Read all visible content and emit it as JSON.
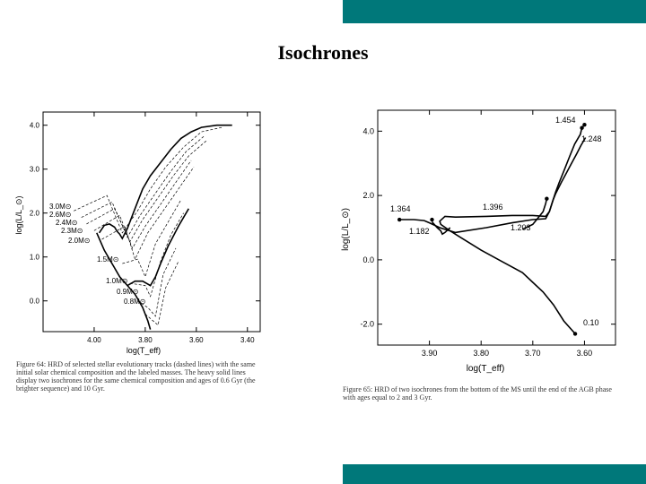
{
  "slide": {
    "title": "Isochrones"
  },
  "colors": {
    "accent": "#00787a"
  },
  "chart_data": [
    {
      "type": "line",
      "title": "",
      "xlabel": "log(T_eff)",
      "ylabel": "log(L/L_⊙)",
      "xlim": [
        4.2,
        3.35
      ],
      "ylim": [
        -0.7,
        4.3
      ],
      "x_ticks": [
        "4.00",
        "3.80",
        "3.60",
        "3.40"
      ],
      "y_ticks": [
        "0.0",
        "1.0",
        "2.0",
        "3.0",
        "4.0"
      ],
      "annotations": [
        "3.0M⊙",
        "2.6M⊙",
        "2.4M⊙",
        "2.3M⊙",
        "2.0M⊙",
        "1.5M⊙",
        "1.0M⊙",
        "0.9M⊙",
        "0.8M⊙"
      ],
      "caption": "Figure 64: HRD of selected stellar evolutionary tracks (dashed lines) with the same initial solar chemical composition and the labeled masses. The heavy solid lines display two isochrones for the same chemical composition and ages of 0.6 Gyr (the brighter sequence) and 10 Gyr.",
      "series": [
        {
          "style": "dashed",
          "x": [
            4.08,
            3.95,
            3.89,
            3.83,
            3.78,
            3.72,
            3.65,
            3.58,
            3.5
          ],
          "y": [
            2.05,
            2.4,
            1.55,
            2.05,
            2.55,
            3.05,
            3.5,
            3.85,
            3.95
          ]
        },
        {
          "style": "dashed",
          "x": [
            4.05,
            3.93,
            3.87,
            3.82,
            3.76,
            3.7,
            3.64,
            3.57
          ],
          "y": [
            1.9,
            2.25,
            1.45,
            1.95,
            2.45,
            2.95,
            3.4,
            3.75
          ]
        },
        {
          "style": "dashed",
          "x": [
            4.03,
            3.92,
            3.86,
            3.81,
            3.75,
            3.69,
            3.63,
            3.56
          ],
          "y": [
            1.75,
            2.1,
            1.35,
            1.85,
            2.35,
            2.85,
            3.3,
            3.65
          ]
        },
        {
          "style": "dashed",
          "x": [
            4.0,
            3.9,
            3.85,
            3.8,
            3.74,
            3.68,
            3.62
          ],
          "y": [
            1.6,
            1.95,
            1.2,
            1.7,
            2.2,
            2.7,
            3.2
          ]
        },
        {
          "style": "dashed",
          "x": [
            3.97,
            3.88,
            3.84,
            3.79,
            3.73,
            3.67,
            3.61
          ],
          "y": [
            1.4,
            1.7,
            0.95,
            1.55,
            2.05,
            2.55,
            3.05
          ]
        },
        {
          "style": "dashed",
          "x": [
            3.89,
            3.83,
            3.8,
            3.76,
            3.71,
            3.66
          ],
          "y": [
            0.85,
            0.95,
            0.55,
            1.3,
            1.8,
            2.3
          ]
        },
        {
          "style": "dashed",
          "x": [
            3.86,
            3.8,
            3.78,
            3.74,
            3.7,
            3.65
          ],
          "y": [
            0.4,
            0.35,
            0.1,
            0.9,
            1.5,
            2.0
          ]
        },
        {
          "style": "dashed",
          "x": [
            3.83,
            3.79,
            3.76,
            3.73,
            3.68
          ],
          "y": [
            0.0,
            -0.15,
            -0.35,
            0.6,
            1.2
          ]
        },
        {
          "style": "dashed",
          "x": [
            3.8,
            3.77,
            3.75,
            3.72,
            3.67
          ],
          "y": [
            -0.3,
            -0.45,
            -0.55,
            0.3,
            0.9
          ]
        },
        {
          "style": "solid",
          "x": [
            3.98,
            3.96,
            3.94,
            3.92,
            3.91,
            3.9,
            3.89,
            3.87,
            3.85,
            3.83,
            3.81,
            3.78,
            3.74,
            3.7,
            3.66,
            3.62,
            3.58,
            3.52,
            3.46
          ],
          "y": [
            1.55,
            1.72,
            1.75,
            1.68,
            1.58,
            1.52,
            1.42,
            1.65,
            1.95,
            2.25,
            2.55,
            2.85,
            3.15,
            3.45,
            3.7,
            3.85,
            3.95,
            4.0,
            4.0
          ]
        },
        {
          "style": "solid",
          "x": [
            3.78,
            3.79,
            3.81,
            3.84,
            3.87,
            3.9,
            3.93,
            3.96,
            3.99
          ],
          "y": [
            -0.65,
            -0.45,
            -0.15,
            0.15,
            0.35,
            0.55,
            0.85,
            1.15,
            1.55
          ]
        },
        {
          "style": "solid",
          "x": [
            3.87,
            3.84,
            3.81,
            3.78,
            3.76,
            3.74,
            3.71,
            3.67,
            3.63
          ],
          "y": [
            0.35,
            0.45,
            0.45,
            0.35,
            0.55,
            0.85,
            1.25,
            1.7,
            2.1
          ]
        }
      ]
    },
    {
      "type": "line",
      "title": "",
      "xlabel": "log(T_eff)",
      "ylabel": "log(L/L_⊙)",
      "xlim": [
        4.0,
        3.54
      ],
      "ylim": [
        -2.65,
        4.65
      ],
      "x_ticks": [
        "3.90",
        "3.80",
        "3.70",
        "3.60"
      ],
      "y_ticks": [
        "-2.0",
        "0.0",
        "2.0",
        "4.0"
      ],
      "annotations": [
        "1.454",
        "1.248",
        "1.364",
        "1.396",
        "1.182",
        "1.203",
        "0.10"
      ],
      "caption": "Figure 65: HRD of two isochrones from the bottom of the MS until the end of the AGB phase with ages equal to 2 and 3 Gyr.",
      "series": [
        {
          "style": "solid",
          "x": [
            3.618,
            3.64,
            3.66,
            3.68,
            3.7,
            3.72,
            3.76,
            3.8,
            3.84,
            3.86,
            3.878,
            3.88,
            3.87,
            3.85,
            3.79,
            3.74,
            3.7,
            3.675,
            3.668,
            3.661,
            3.656,
            3.649,
            3.639,
            3.629,
            3.619,
            3.608,
            3.605,
            3.6
          ],
          "y": [
            -2.3,
            -1.9,
            -1.4,
            -1.0,
            -0.7,
            -0.4,
            -0.05,
            0.3,
            0.7,
            0.9,
            1.1,
            1.2,
            1.35,
            1.33,
            1.35,
            1.38,
            1.38,
            1.35,
            1.5,
            1.85,
            2.1,
            2.4,
            2.8,
            3.2,
            3.6,
            3.9,
            4.1,
            4.2
          ]
        },
        {
          "style": "solid",
          "x": [
            3.958,
            3.93,
            3.91,
            3.9,
            3.88,
            3.85,
            3.79,
            3.74,
            3.7,
            3.675,
            3.668,
            3.661,
            3.656,
            3.645,
            3.635,
            3.625,
            3.615,
            3.607,
            3.598
          ],
          "y": [
            1.25,
            1.25,
            1.22,
            1.15,
            1.0,
            0.85,
            1.0,
            1.15,
            1.25,
            1.28,
            1.5,
            1.85,
            2.05,
            2.4,
            2.7,
            3.0,
            3.3,
            3.55,
            3.8
          ]
        },
        {
          "style": "solid",
          "x": [
            3.895,
            3.885,
            3.878,
            3.875,
            3.87,
            3.86
          ],
          "y": [
            1.18,
            1.0,
            0.9,
            0.8,
            0.85,
            1.0
          ]
        },
        {
          "style": "solid",
          "x": [
            3.673,
            3.675,
            3.68,
            3.69,
            3.7,
            3.72
          ],
          "y": [
            1.9,
            1.75,
            1.5,
            1.3,
            1.1,
            0.95
          ]
        }
      ]
    }
  ]
}
